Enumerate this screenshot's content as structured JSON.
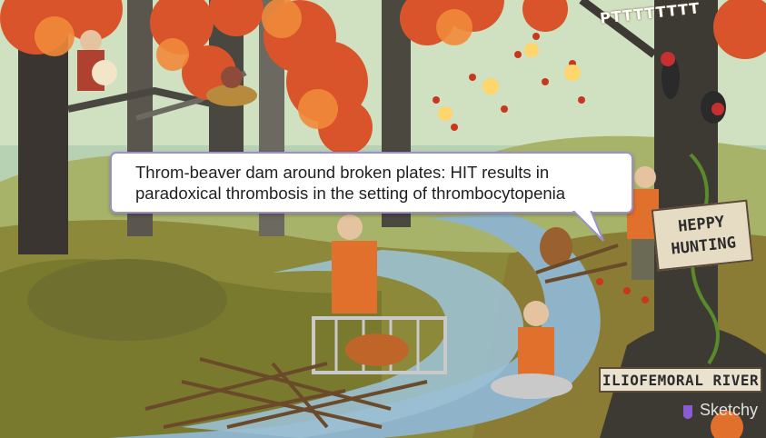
{
  "caption": {
    "line1": "Throm-beaver dam around broken plates: HIT results in",
    "line2": "paradoxical thrombosis in the setting of thrombocytopenia"
  },
  "signs": {
    "heppy_line1": "HEPPY",
    "heppy_line2": "HUNTING",
    "river": "ILIOFEMORAL RIVER"
  },
  "sound_effect": "PTTTTTTTT",
  "watermark": "Sketchy",
  "colors": {
    "caption_border": "#9b8fd1",
    "foliage": "#d9542a",
    "river": "#8fb4c9",
    "vest": "#e0702c"
  }
}
